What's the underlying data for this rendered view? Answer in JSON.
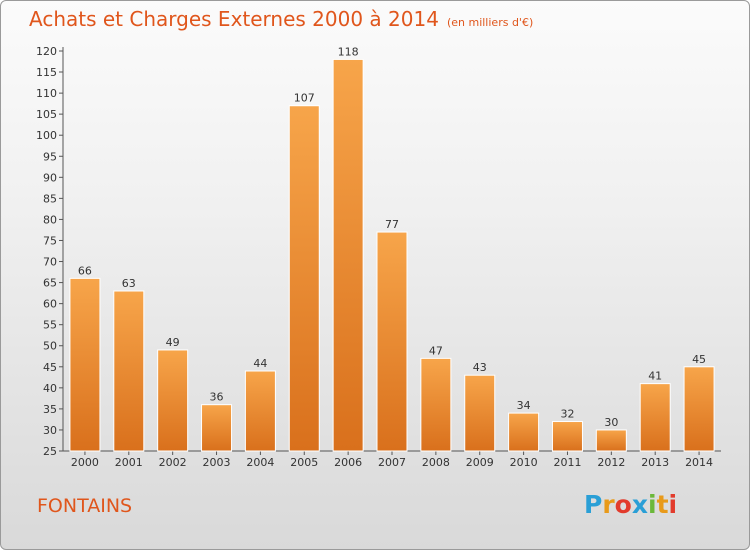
{
  "title": "Achats et Charges Externes 2000 à 2014",
  "unit": "(en milliers d'€)",
  "place": "FONTAINS",
  "logo": {
    "letters": [
      "P",
      "r",
      "o",
      "x",
      "i",
      "t",
      "i"
    ],
    "colors": [
      "#2a9fd6",
      "#e89a1a",
      "#e23b2c",
      "#2a9fd6",
      "#6bb83a",
      "#e89a1a",
      "#e23b2c"
    ]
  },
  "colors": {
    "bar_light": "#f7a54a",
    "bar_dark": "#d9701c",
    "title": "#e0561c"
  },
  "chart_data": {
    "type": "bar",
    "title": "Achats et Charges Externes 2000 à 2014",
    "xlabel": "",
    "ylabel": "",
    "categories": [
      "2000",
      "2001",
      "2002",
      "2003",
      "2004",
      "2005",
      "2006",
      "2007",
      "2008",
      "2009",
      "2010",
      "2011",
      "2012",
      "2013",
      "2014"
    ],
    "values": [
      66,
      63,
      49,
      36,
      44,
      107,
      118,
      77,
      47,
      43,
      34,
      32,
      30,
      41,
      45
    ],
    "ylim": [
      25,
      120
    ],
    "yticks": [
      25,
      30,
      35,
      40,
      45,
      50,
      55,
      60,
      65,
      70,
      75,
      80,
      85,
      90,
      95,
      100,
      105,
      110,
      115,
      120
    ],
    "grid": false,
    "data_labels": true
  }
}
